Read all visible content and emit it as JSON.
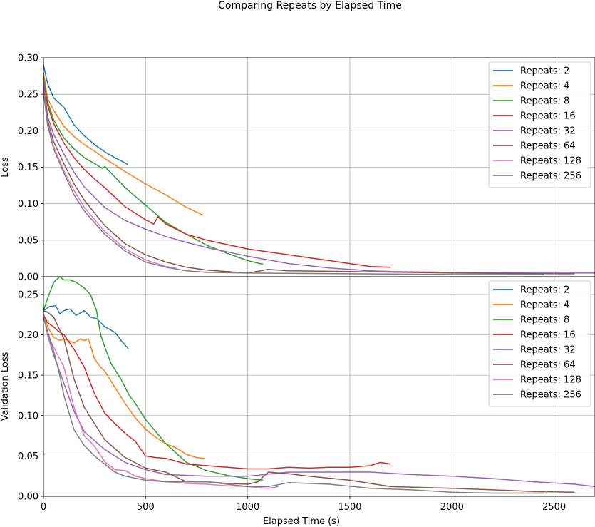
{
  "title": "Comparing Repeats by Elapsed Time",
  "chart_data": [
    {
      "type": "line",
      "panel": "top",
      "xlabel": "",
      "ylabel": "Loss",
      "xlim": [
        0,
        2700
      ],
      "ylim": [
        0,
        0.3
      ],
      "xticks": [
        0,
        500,
        1000,
        1500,
        2000,
        2500
      ],
      "yticks": [
        0.0,
        0.05,
        0.1,
        0.15,
        0.2,
        0.25,
        0.3
      ],
      "ytick_labels": [
        "0.00",
        "0.05",
        "0.10",
        "0.15",
        "0.20",
        "0.25",
        "0.30"
      ],
      "grid": true,
      "legend": "top-right",
      "series": [
        {
          "name": "Repeats: 2",
          "color": "#1f77b4",
          "x": [
            0,
            20,
            50,
            100,
            150,
            200,
            250,
            300,
            350,
            400,
            415
          ],
          "y": [
            0.29,
            0.265,
            0.245,
            0.232,
            0.208,
            0.193,
            0.181,
            0.171,
            0.163,
            0.156,
            0.153
          ]
        },
        {
          "name": "Repeats: 4",
          "color": "#ff7f0e",
          "x": [
            0,
            20,
            50,
            100,
            150,
            200,
            250,
            300,
            400,
            500,
            600,
            700,
            785
          ],
          "y": [
            0.28,
            0.245,
            0.228,
            0.206,
            0.192,
            0.181,
            0.172,
            0.162,
            0.144,
            0.127,
            0.112,
            0.095,
            0.084
          ]
        },
        {
          "name": "Repeats: 8",
          "color": "#2ca02c",
          "x": [
            0,
            20,
            50,
            100,
            150,
            200,
            250,
            290,
            300,
            400,
            500,
            600,
            700,
            800,
            900,
            1000,
            1075
          ],
          "y": [
            0.275,
            0.24,
            0.215,
            0.19,
            0.175,
            0.163,
            0.155,
            0.148,
            0.151,
            0.122,
            0.098,
            0.074,
            0.058,
            0.043,
            0.032,
            0.022,
            0.017
          ]
        },
        {
          "name": "Repeats: 16",
          "color": "#d62728",
          "x": [
            0,
            20,
            50,
            100,
            150,
            200,
            250,
            300,
            400,
            500,
            540,
            560,
            600,
            700,
            800,
            900,
            1000,
            1100,
            1200,
            1300,
            1400,
            1500,
            1600,
            1700
          ],
          "y": [
            0.27,
            0.235,
            0.21,
            0.183,
            0.163,
            0.147,
            0.134,
            0.122,
            0.096,
            0.078,
            0.072,
            0.082,
            0.072,
            0.058,
            0.05,
            0.044,
            0.038,
            0.034,
            0.03,
            0.026,
            0.022,
            0.018,
            0.014,
            0.013
          ]
        },
        {
          "name": "Repeats: 32",
          "color": "#9467bd",
          "x": [
            0,
            20,
            50,
            100,
            150,
            200,
            300,
            400,
            500,
            600,
            700,
            800,
            1000,
            1200,
            1400,
            1600,
            1700,
            2000,
            2400,
            2700
          ],
          "y": [
            0.27,
            0.22,
            0.195,
            0.168,
            0.143,
            0.123,
            0.095,
            0.077,
            0.065,
            0.055,
            0.047,
            0.04,
            0.028,
            0.018,
            0.012,
            0.008,
            0.007,
            0.006,
            0.005,
            0.005
          ]
        },
        {
          "name": "Repeats: 64",
          "color": "#8c564b",
          "x": [
            0,
            20,
            50,
            100,
            150,
            200,
            300,
            400,
            500,
            600,
            700,
            800,
            1000,
            1100,
            1200,
            1500,
            2000,
            2500,
            2600
          ],
          "y": [
            0.26,
            0.215,
            0.185,
            0.155,
            0.127,
            0.105,
            0.07,
            0.045,
            0.03,
            0.02,
            0.013,
            0.009,
            0.005,
            0.01,
            0.008,
            0.007,
            0.005,
            0.004,
            0.004
          ]
        },
        {
          "name": "Repeats: 128",
          "color": "#e377c2",
          "x": [
            0,
            20,
            50,
            100,
            150,
            200,
            300,
            400,
            500,
            600,
            650
          ],
          "y": [
            0.255,
            0.21,
            0.178,
            0.145,
            0.118,
            0.095,
            0.062,
            0.038,
            0.023,
            0.014,
            0.012
          ]
        },
        {
          "name": "Repeats: 256",
          "color": "#7f7f7f",
          "x": [
            0,
            20,
            50,
            100,
            150,
            200,
            300,
            400,
            500,
            600,
            700,
            800,
            1000,
            1500,
            2000,
            2450
          ],
          "y": [
            0.255,
            0.208,
            0.175,
            0.142,
            0.112,
            0.09,
            0.058,
            0.035,
            0.02,
            0.013,
            0.008,
            0.006,
            0.005,
            0.004,
            0.003,
            0.003
          ]
        }
      ]
    },
    {
      "type": "line",
      "panel": "bottom",
      "xlabel": "Elapsed Time (s)",
      "ylabel": "Validation Loss",
      "xlim": [
        0,
        2700
      ],
      "ylim": [
        0,
        0.272
      ],
      "xticks": [
        0,
        500,
        1000,
        1500,
        2000,
        2500
      ],
      "xtick_labels": [
        "0",
        "500",
        "1000",
        "1500",
        "2000",
        "2500"
      ],
      "yticks": [
        0.0,
        0.05,
        0.1,
        0.15,
        0.2,
        0.25
      ],
      "ytick_labels": [
        "0.00",
        "0.05",
        "0.10",
        "0.15",
        "0.20",
        "0.25"
      ],
      "grid": true,
      "legend": "top-right",
      "series": [
        {
          "name": "Repeats: 2",
          "color": "#1f77b4",
          "x": [
            0,
            30,
            60,
            80,
            100,
            130,
            160,
            200,
            230,
            260,
            300,
            350,
            390,
            415
          ],
          "y": [
            0.23,
            0.235,
            0.236,
            0.226,
            0.23,
            0.232,
            0.224,
            0.23,
            0.222,
            0.22,
            0.21,
            0.203,
            0.19,
            0.183
          ]
        },
        {
          "name": "Repeats: 4",
          "color": "#ff7f0e",
          "x": [
            0,
            20,
            50,
            80,
            100,
            150,
            180,
            200,
            220,
            250,
            280,
            300,
            350,
            400,
            450,
            500,
            550,
            600,
            650,
            700,
            750,
            790
          ],
          "y": [
            0.226,
            0.21,
            0.197,
            0.193,
            0.195,
            0.19,
            0.195,
            0.193,
            0.195,
            0.17,
            0.16,
            0.155,
            0.135,
            0.115,
            0.097,
            0.083,
            0.073,
            0.065,
            0.06,
            0.052,
            0.048,
            0.047
          ]
        },
        {
          "name": "Repeats: 8",
          "color": "#2ca02c",
          "x": [
            0,
            20,
            50,
            80,
            100,
            130,
            160,
            200,
            230,
            260,
            280,
            300,
            330,
            380,
            420,
            450,
            500,
            600,
            700,
            800,
            900,
            1000,
            1075
          ],
          "y": [
            0.23,
            0.245,
            0.265,
            0.272,
            0.268,
            0.268,
            0.265,
            0.258,
            0.25,
            0.23,
            0.2,
            0.185,
            0.165,
            0.145,
            0.125,
            0.115,
            0.095,
            0.065,
            0.042,
            0.032,
            0.026,
            0.022,
            0.02
          ]
        },
        {
          "name": "Repeats: 16",
          "color": "#d62728",
          "x": [
            0,
            20,
            50,
            70,
            100,
            150,
            200,
            250,
            300,
            350,
            400,
            450,
            500,
            550,
            600,
            700,
            800,
            900,
            1000,
            1100,
            1200,
            1300,
            1400,
            1500,
            1600,
            1650,
            1700
          ],
          "y": [
            0.225,
            0.215,
            0.21,
            0.205,
            0.2,
            0.182,
            0.16,
            0.127,
            0.103,
            0.09,
            0.078,
            0.068,
            0.05,
            0.048,
            0.047,
            0.04,
            0.038,
            0.036,
            0.034,
            0.034,
            0.036,
            0.035,
            0.036,
            0.036,
            0.038,
            0.042,
            0.04
          ]
        },
        {
          "name": "Repeats: 32",
          "color": "#9467bd",
          "x": [
            0,
            20,
            50,
            100,
            150,
            200,
            300,
            400,
            500,
            600,
            800,
            1000,
            1200,
            1400,
            1600,
            1800,
            2000,
            2200,
            2400,
            2600,
            2700
          ],
          "y": [
            0.225,
            0.2,
            0.175,
            0.14,
            0.105,
            0.08,
            0.058,
            0.042,
            0.033,
            0.027,
            0.025,
            0.025,
            0.03,
            0.03,
            0.03,
            0.027,
            0.025,
            0.022,
            0.018,
            0.015,
            0.012
          ]
        },
        {
          "name": "Repeats: 64",
          "color": "#8c564b",
          "x": [
            0,
            20,
            50,
            100,
            150,
            200,
            300,
            400,
            500,
            600,
            700,
            800,
            900,
            1000,
            1050,
            1100,
            1200,
            1300,
            1500,
            1700,
            2000,
            2200,
            2400,
            2600
          ],
          "y": [
            0.23,
            0.228,
            0.222,
            0.195,
            0.145,
            0.11,
            0.07,
            0.048,
            0.035,
            0.03,
            0.018,
            0.018,
            0.016,
            0.015,
            0.018,
            0.03,
            0.028,
            0.025,
            0.02,
            0.012,
            0.01,
            0.008,
            0.006,
            0.005
          ]
        },
        {
          "name": "Repeats: 128",
          "color": "#e377c2",
          "x": [
            0,
            20,
            50,
            100,
            150,
            200,
            250,
            300,
            350,
            400,
            450,
            500,
            600,
            700,
            800,
            900,
            1000,
            1100,
            1150
          ],
          "y": [
            0.225,
            0.2,
            0.185,
            0.16,
            0.11,
            0.075,
            0.062,
            0.043,
            0.033,
            0.032,
            0.025,
            0.022,
            0.018,
            0.016,
            0.015,
            0.013,
            0.012,
            0.01,
            0.012
          ]
        },
        {
          "name": "Repeats: 256",
          "color": "#7f7f7f",
          "x": [
            0,
            20,
            50,
            80,
            100,
            150,
            200,
            250,
            300,
            350,
            400,
            500,
            600,
            800,
            1000,
            1100,
            1200,
            1400,
            1600,
            1800,
            2000,
            2200,
            2450
          ],
          "y": [
            0.222,
            0.205,
            0.18,
            0.15,
            0.125,
            0.082,
            0.063,
            0.05,
            0.04,
            0.03,
            0.025,
            0.02,
            0.018,
            0.018,
            0.012,
            0.012,
            0.017,
            0.015,
            0.01,
            0.008,
            0.005,
            0.004,
            0.004
          ]
        }
      ]
    }
  ]
}
